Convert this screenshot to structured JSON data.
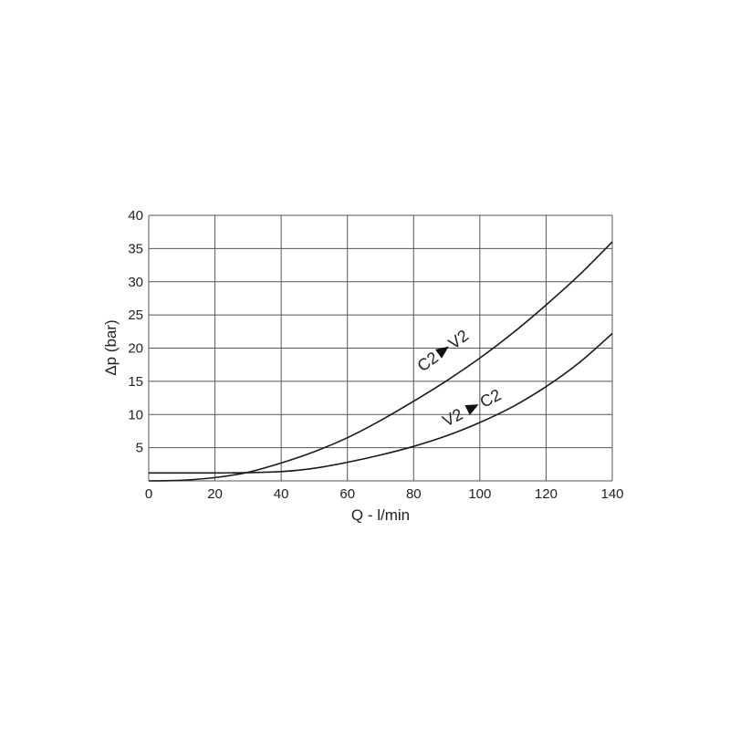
{
  "chart_data": {
    "type": "line",
    "xlabel": "Q - l/min",
    "ylabel": "Δp (bar)",
    "xlim": [
      0,
      140
    ],
    "ylim": [
      0,
      40
    ],
    "xticks": [
      0,
      20,
      40,
      60,
      80,
      100,
      120,
      140
    ],
    "yticks": [
      5,
      10,
      15,
      20,
      25,
      30,
      35,
      40
    ],
    "grid": true,
    "line_color": "#1a1a1a",
    "grid_color": "#555555",
    "series": [
      {
        "name": "C2 ▶ V2",
        "label_from": "C2",
        "label_to": "V2",
        "x": [
          0,
          10,
          20,
          30,
          40,
          50,
          60,
          70,
          80,
          90,
          100,
          110,
          120,
          130,
          140
        ],
        "y": [
          0,
          0.1,
          0.5,
          1.3,
          2.7,
          4.4,
          6.5,
          9.1,
          12,
          15.1,
          18.5,
          22.3,
          26.5,
          31,
          36
        ]
      },
      {
        "name": "V2 ▶ C2",
        "label_from": "V2",
        "label_to": "C2",
        "x": [
          0,
          10,
          20,
          30,
          40,
          50,
          60,
          70,
          80,
          90,
          100,
          110,
          120,
          130,
          140
        ],
        "y": [
          1.2,
          1.2,
          1.2,
          1.25,
          1.4,
          1.9,
          2.8,
          3.9,
          5.2,
          6.8,
          8.8,
          11.2,
          14.2,
          17.8,
          22.2
        ]
      }
    ]
  }
}
